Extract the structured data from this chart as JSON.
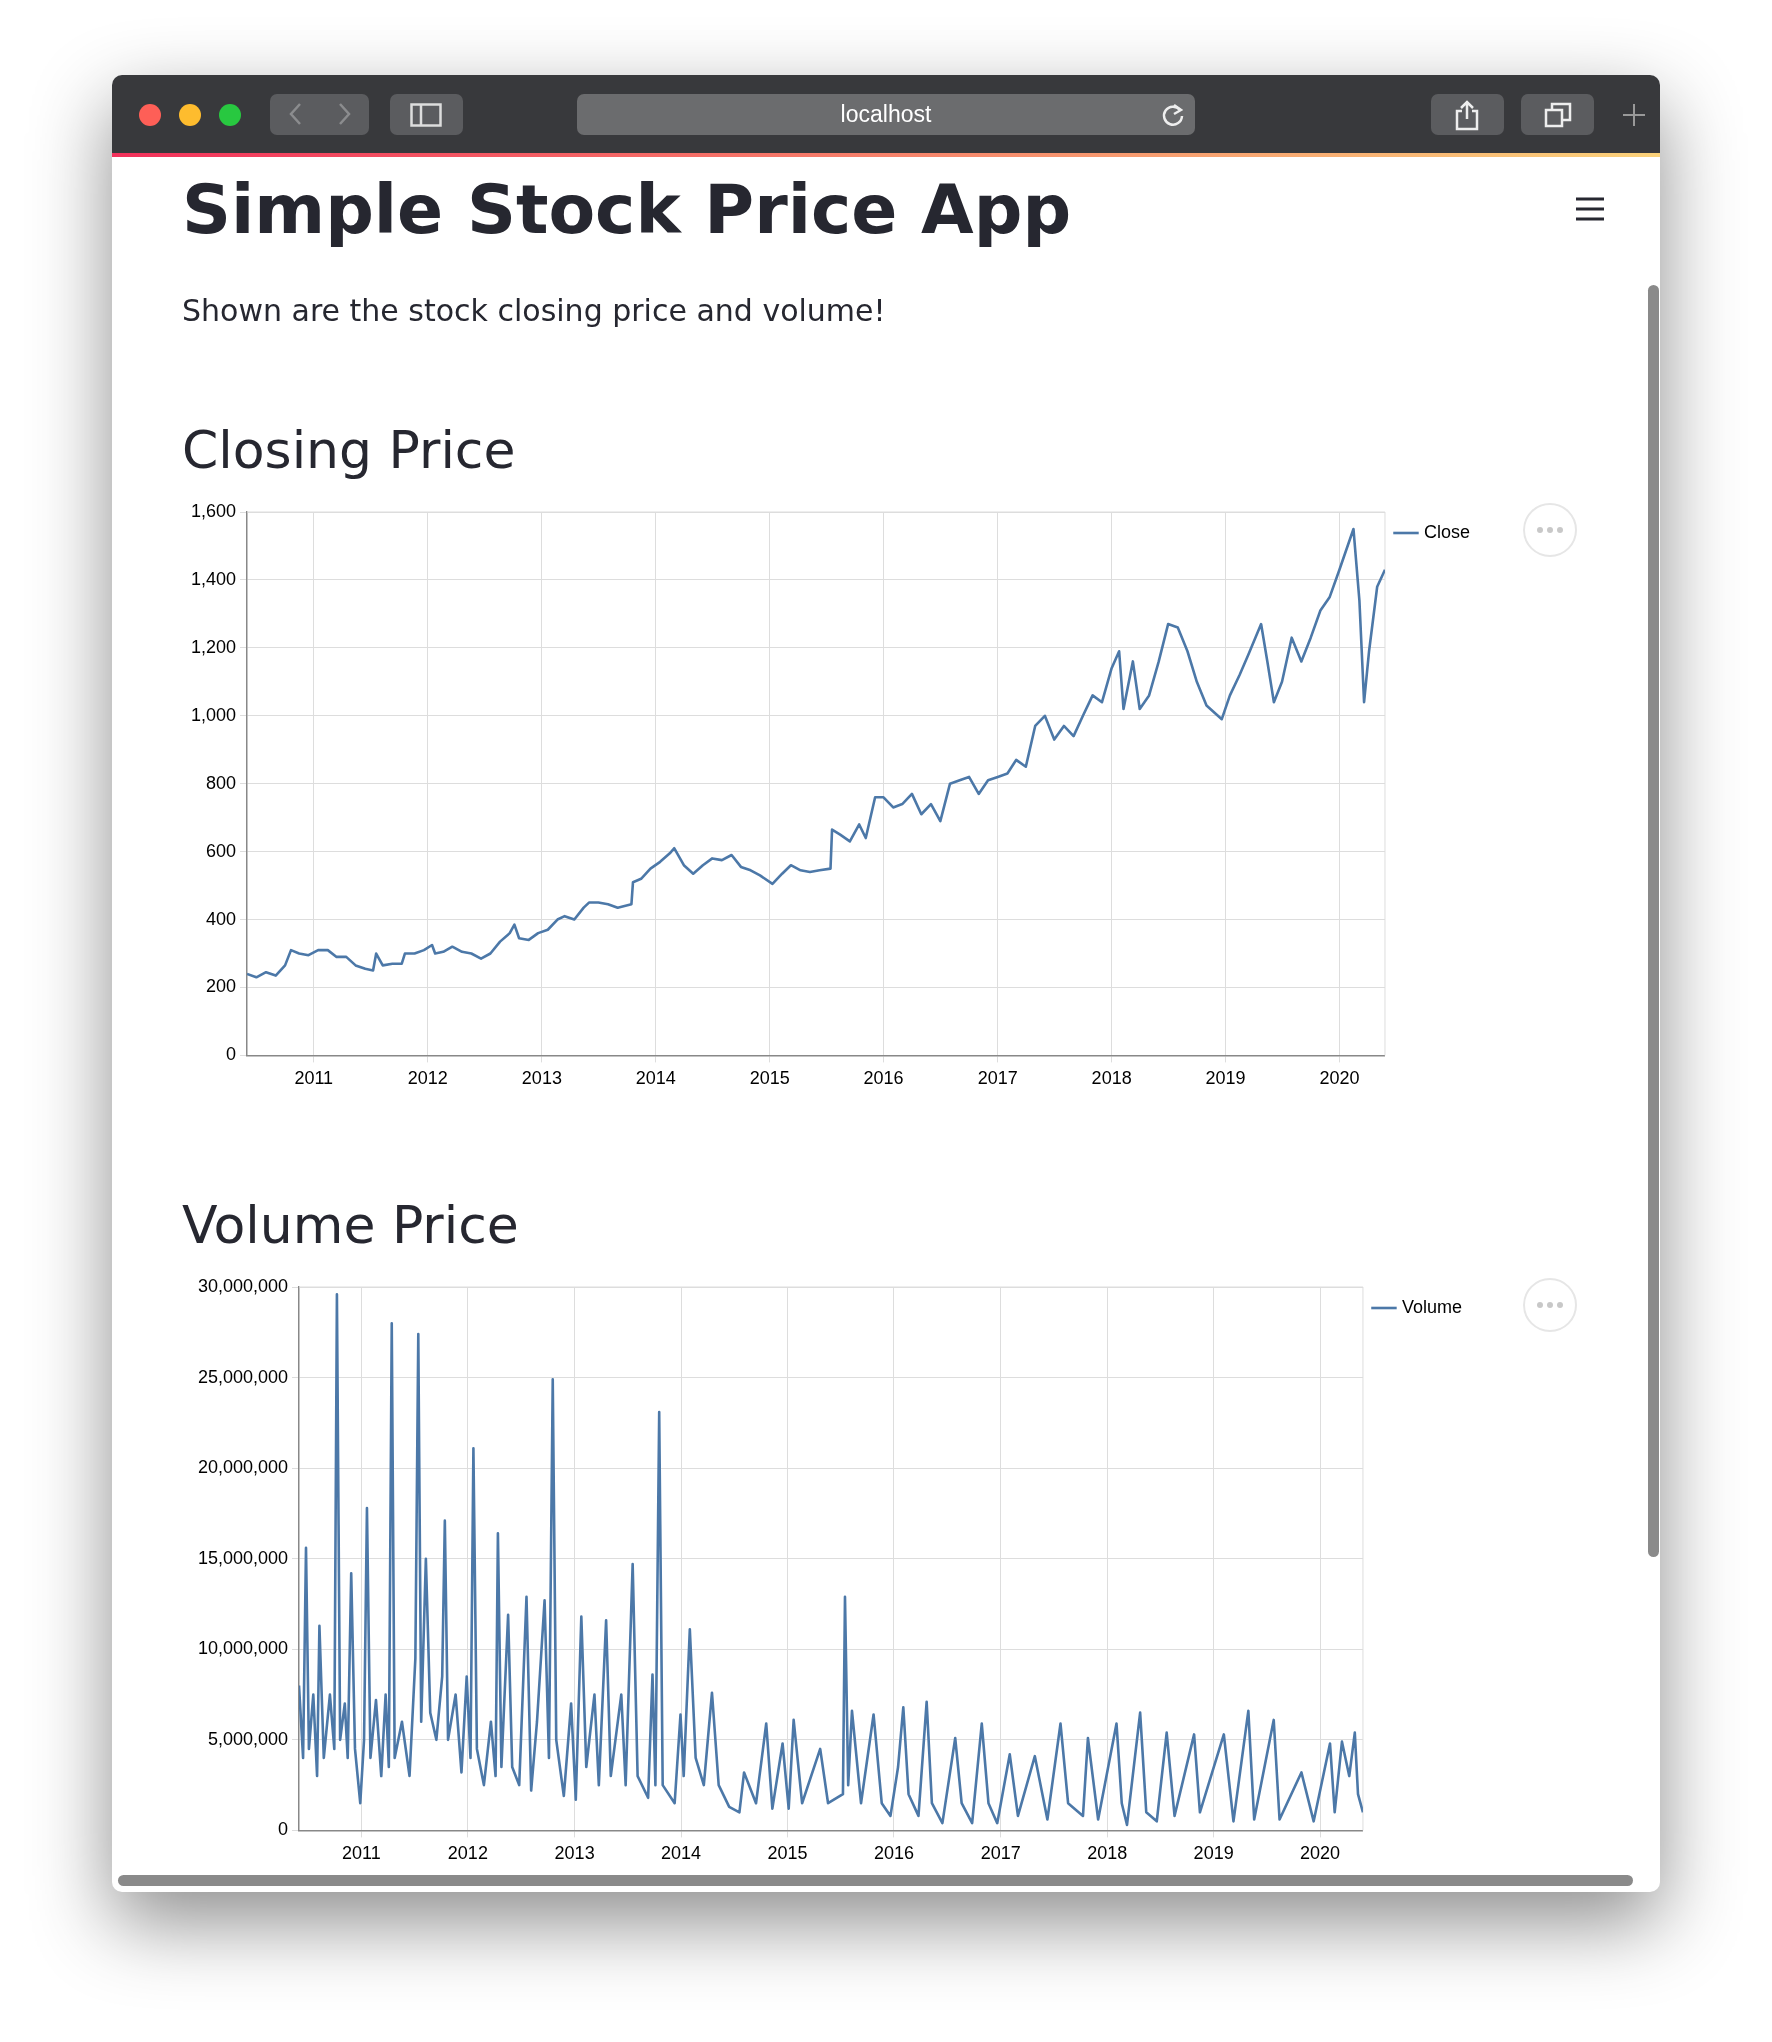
{
  "chart_data": [
    {
      "type": "line",
      "title": "Closing Price",
      "annotations": [
        "localhost",
        "Simple Stock Price App",
        "Shown are the stock closing price and volume!"
      ],
      "x": [
        "2010-06-01",
        "2010-07-01",
        "2010-08-01",
        "2010-09-01",
        "2010-10-01",
        "2010-10-20",
        "2010-11-15",
        "2010-12-15",
        "2011-01-15",
        "2011-02-15",
        "2011-03-15",
        "2011-04-15",
        "2011-05-15",
        "2011-06-15",
        "2011-07-10",
        "2011-07-20",
        "2011-08-10",
        "2011-09-10",
        "2011-10-10",
        "2011-10-20",
        "2011-11-20",
        "2011-12-20",
        "2012-01-15",
        "2012-01-25",
        "2012-02-20",
        "2012-03-20",
        "2012-04-20",
        "2012-05-20",
        "2012-06-20",
        "2012-07-20",
        "2012-08-20",
        "2012-09-20",
        "2012-10-05",
        "2012-10-20",
        "2012-11-20",
        "2012-12-20",
        "2013-01-20",
        "2013-02-20",
        "2013-03-15",
        "2013-04-15",
        "2013-05-15",
        "2013-06-01",
        "2013-07-01",
        "2013-08-01",
        "2013-09-01",
        "2013-10-15",
        "2013-10-20",
        "2013-11-15",
        "2013-12-15",
        "2014-01-15",
        "2014-02-15",
        "2014-03-01",
        "2014-04-01",
        "2014-05-01",
        "2014-06-01",
        "2014-07-01",
        "2014-08-01",
        "2014-09-01",
        "2014-10-01",
        "2014-11-01",
        "2014-12-01",
        "2015-01-10",
        "2015-02-10",
        "2015-03-10",
        "2015-04-10",
        "2015-05-10",
        "2015-06-10",
        "2015-07-15",
        "2015-07-20",
        "2015-08-15",
        "2015-09-15",
        "2015-10-15",
        "2015-11-05",
        "2015-12-05",
        "2016-01-01",
        "2016-02-01",
        "2016-03-01",
        "2016-04-01",
        "2016-05-01",
        "2016-06-01",
        "2016-07-01",
        "2016-08-01",
        "2016-09-01",
        "2016-10-01",
        "2016-11-01",
        "2016-12-01",
        "2017-01-01",
        "2017-02-01",
        "2017-03-01",
        "2017-04-01",
        "2017-05-01",
        "2017-06-01",
        "2017-07-01",
        "2017-08-01",
        "2017-09-01",
        "2017-10-01",
        "2017-11-01",
        "2017-12-01",
        "2018-01-01",
        "2018-01-25",
        "2018-02-08",
        "2018-03-10",
        "2018-04-01",
        "2018-05-01",
        "2018-06-01",
        "2018-07-01",
        "2018-08-01",
        "2018-09-01",
        "2018-10-01",
        "2018-11-01",
        "2018-12-20",
        "2019-01-15",
        "2019-02-15",
        "2019-03-15",
        "2019-04-25",
        "2019-05-15",
        "2019-06-05",
        "2019-07-01",
        "2019-08-01",
        "2019-09-01",
        "2019-10-01",
        "2019-11-01",
        "2019-12-01",
        "2020-01-01",
        "2020-02-15",
        "2020-03-05",
        "2020-03-20",
        "2020-04-05",
        "2020-05-01",
        "2020-05-26"
      ],
      "series": [
        {
          "name": "Close",
          "color": "#4c78a8",
          "values": [
            240,
            230,
            245,
            235,
            265,
            310,
            300,
            295,
            310,
            310,
            290,
            290,
            265,
            255,
            250,
            300,
            265,
            270,
            270,
            300,
            300,
            310,
            325,
            300,
            305,
            320,
            305,
            300,
            285,
            300,
            335,
            360,
            385,
            345,
            340,
            360,
            370,
            400,
            410,
            400,
            435,
            450,
            450,
            445,
            435,
            445,
            510,
            520,
            550,
            570,
            595,
            610,
            560,
            535,
            560,
            580,
            575,
            590,
            555,
            545,
            530,
            505,
            535,
            560,
            545,
            540,
            545,
            550,
            665,
            650,
            630,
            680,
            640,
            760,
            760,
            730,
            740,
            770,
            710,
            740,
            690,
            800,
            810,
            820,
            770,
            810,
            820,
            830,
            870,
            850,
            970,
            1000,
            930,
            970,
            940,
            1000,
            1060,
            1040,
            1140,
            1190,
            1020,
            1160,
            1020,
            1060,
            1160,
            1270,
            1260,
            1190,
            1100,
            1030,
            990,
            1060,
            1120,
            1180,
            1270,
            1160,
            1040,
            1100,
            1230,
            1160,
            1230,
            1310,
            1350,
            1430,
            1550,
            1340,
            1040,
            1190,
            1380,
            1430
          ]
        }
      ],
      "xlim": [
        "2010-06-01",
        "2020-05-26"
      ],
      "xticks": [
        "2011",
        "2012",
        "2013",
        "2014",
        "2015",
        "2016",
        "2017",
        "2018",
        "2019",
        "2020"
      ],
      "ylim": [
        0,
        1600
      ],
      "yticks": [
        0,
        200,
        400,
        600,
        800,
        {
          "value": 1000,
          "label": "1,000"
        },
        {
          "value": 1200,
          "label": "1,200"
        },
        {
          "value": 1400,
          "label": "1,400"
        },
        {
          "value": 1600,
          "label": "1,600"
        }
      ],
      "grid": true,
      "legend": "top right",
      "marker": "none",
      "line_style": "solid"
    },
    {
      "type": "line",
      "title": "Volume Price",
      "x": [
        "2010-06-01",
        "2010-06-15",
        "2010-06-25",
        "2010-07-05",
        "2010-07-20",
        "2010-08-02",
        "2010-08-10",
        "2010-08-25",
        "2010-09-15",
        "2010-09-30",
        "2010-10-09",
        "2010-10-20",
        "2010-11-05",
        "2010-11-15",
        "2010-11-27",
        "2010-12-10",
        "2010-12-28",
        "2011-01-10",
        "2011-01-20",
        "2011-02-01",
        "2011-02-20",
        "2011-03-10",
        "2011-03-25",
        "2011-04-05",
        "2011-04-15",
        "2011-04-25",
        "2011-05-20",
        "2011-06-15",
        "2011-07-05",
        "2011-07-15",
        "2011-07-25",
        "2011-08-10",
        "2011-08-25",
        "2011-09-15",
        "2011-10-05",
        "2011-10-14",
        "2011-10-25",
        "2011-11-20",
        "2011-12-10",
        "2011-12-28",
        "2012-01-10",
        "2012-01-20",
        "2012-02-01",
        "2012-02-25",
        "2012-03-20",
        "2012-04-05",
        "2012-04-13",
        "2012-04-25",
        "2012-05-18",
        "2012-06-01",
        "2012-06-25",
        "2012-07-20",
        "2012-08-05",
        "2012-08-25",
        "2012-09-20",
        "2012-10-05",
        "2012-10-18",
        "2012-10-30",
        "2012-11-25",
        "2012-12-20",
        "2013-01-05",
        "2013-01-24",
        "2013-02-10",
        "2013-03-10",
        "2013-03-25",
        "2013-04-19",
        "2013-05-05",
        "2013-06-10",
        "2013-06-25",
        "2013-07-19",
        "2013-08-05",
        "2013-09-10",
        "2013-09-25",
        "2013-10-05",
        "2013-10-18",
        "2013-10-30",
        "2013-12-10",
        "2013-12-30",
        "2014-01-10",
        "2014-01-31",
        "2014-02-20",
        "2014-03-20",
        "2014-04-17",
        "2014-05-10",
        "2014-06-15",
        "2014-07-20",
        "2014-08-05",
        "2014-09-15",
        "2014-10-20",
        "2014-11-10",
        "2014-12-15",
        "2015-01-05",
        "2015-01-22",
        "2015-02-20",
        "2015-04-23",
        "2015-05-20",
        "2015-07-10",
        "2015-07-17",
        "2015-07-28",
        "2015-08-10",
        "2015-09-10",
        "2015-10-23",
        "2015-11-20",
        "2015-12-20",
        "2016-01-15",
        "2016-02-02",
        "2016-02-20",
        "2016-03-25",
        "2016-04-22",
        "2016-05-10",
        "2016-06-15",
        "2016-07-29",
        "2016-08-20",
        "2016-09-25",
        "2016-10-28",
        "2016-11-20",
        "2016-12-20",
        "2017-02-01",
        "2017-03-01",
        "2017-04-28",
        "2017-06-10",
        "2017-07-25",
        "2017-08-20",
        "2017-10-10",
        "2017-10-27",
        "2017-12-01",
        "2018-02-02",
        "2018-02-20",
        "2018-03-10",
        "2018-04-24",
        "2018-05-15",
        "2018-06-20",
        "2018-07-24",
        "2018-08-20",
        "2018-10-26",
        "2018-11-15",
        "2019-02-05",
        "2019-03-10",
        "2019-04-30",
        "2019-05-20",
        "2019-07-26",
        "2019-08-15",
        "2019-10-29",
        "2019-12-10",
        "2020-02-04",
        "2020-02-20",
        "2020-03-16",
        "2020-04-10",
        "2020-04-29",
        "2020-05-10",
        "2020-05-27"
      ],
      "series": [
        {
          "name": "Volume",
          "color": "#4c78a8",
          "values": [
            8000000,
            4000000,
            15600000,
            4500000,
            7500000,
            3000000,
            11300000,
            4000000,
            7500000,
            4500000,
            29600000,
            5000000,
            7000000,
            4000000,
            14200000,
            4500000,
            1500000,
            5000000,
            17800000,
            4000000,
            7200000,
            3000000,
            7500000,
            3500000,
            28000000,
            4000000,
            6000000,
            3000000,
            9500000,
            27400000,
            6000000,
            15000000,
            6500000,
            5000000,
            8500000,
            17100000,
            5000000,
            7500000,
            3200000,
            8500000,
            4000000,
            21100000,
            4500000,
            2500000,
            6000000,
            3000000,
            16400000,
            3500000,
            11900000,
            3500000,
            2500000,
            12900000,
            2200000,
            6000000,
            12700000,
            4000000,
            24900000,
            5000000,
            1900000,
            7000000,
            1700000,
            11800000,
            3500000,
            7500000,
            2500000,
            11600000,
            3000000,
            7500000,
            2500000,
            14700000,
            3000000,
            1800000,
            8600000,
            2500000,
            23100000,
            2500000,
            1500000,
            6400000,
            3000000,
            11100000,
            4000000,
            2500000,
            7600000,
            2500000,
            1300000,
            1000000,
            3200000,
            1500000,
            5900000,
            1200000,
            4800000,
            1200000,
            6100000,
            1500000,
            4500000,
            1500000,
            2000000,
            12900000,
            2500000,
            6600000,
            1500000,
            6400000,
            1500000,
            800000,
            3500000,
            6800000,
            2000000,
            800000,
            7100000,
            1500000,
            400000,
            5100000,
            1500000,
            400000,
            5900000,
            1500000,
            400000,
            4200000,
            800000,
            4100000,
            600000,
            5900000,
            1500000,
            800000,
            5100000,
            600000,
            5900000,
            1500000,
            300000,
            6500000,
            1000000,
            500000,
            5400000,
            800000,
            5300000,
            1000000,
            5300000,
            500000,
            6600000,
            600000,
            6100000,
            600000,
            3200000,
            500000,
            4800000,
            1000000,
            4900000,
            3000000,
            5400000,
            2000000,
            1000000
          ]
        }
      ],
      "xlim": [
        "2010-06-01",
        "2020-05-27"
      ],
      "xticks": [
        "2011",
        "2012",
        "2013",
        "2014",
        "2015",
        "2016",
        "2017",
        "2018",
        "2019",
        "2020"
      ],
      "ylim": [
        0,
        30000000
      ],
      "yticks": [
        0,
        {
          "value": 5000000,
          "label": "5,000,000"
        },
        {
          "value": 10000000,
          "label": "10,000,000"
        },
        {
          "value": 15000000,
          "label": "15,000,000"
        },
        {
          "value": 20000000,
          "label": "20,000,000"
        },
        {
          "value": 25000000,
          "label": "25,000,000"
        },
        {
          "value": 30000000,
          "label": "30,000,000"
        }
      ],
      "grid": true,
      "legend": "top right",
      "marker": "none",
      "line_style": "solid"
    }
  ]
}
